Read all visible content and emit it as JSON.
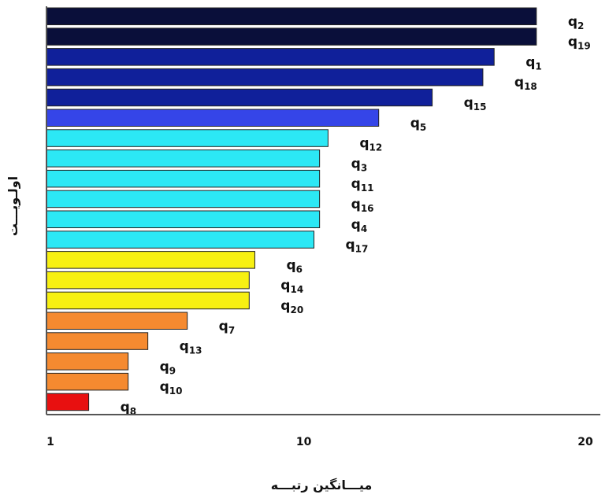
{
  "chart_data": {
    "type": "bar",
    "orientation": "horizontal",
    "xlabel": "میـــانگین رتبـــه",
    "ylabel": "اولـویـــت",
    "xlim": [
      1,
      20
    ],
    "xticks": [
      "1",
      "10",
      "20"
    ],
    "grid": false,
    "legend": "none",
    "bars": [
      {
        "label": "q",
        "sub": "2",
        "value": 18.4,
        "color": "#0a0f3a"
      },
      {
        "label": "q",
        "sub": "19",
        "value": 18.4,
        "color": "#0a0f3a"
      },
      {
        "label": "q",
        "sub": "1",
        "value": 16.9,
        "color": "#10209a"
      },
      {
        "label": "q",
        "sub": "18",
        "value": 16.5,
        "color": "#10209a"
      },
      {
        "label": "q",
        "sub": "15",
        "value": 14.7,
        "color": "#10209a"
      },
      {
        "label": "q",
        "sub": "5",
        "value": 12.8,
        "color": "#3545e8"
      },
      {
        "label": "q",
        "sub": "12",
        "value": 11.0,
        "color": "#2ce8f5"
      },
      {
        "label": "q",
        "sub": "3",
        "value": 10.7,
        "color": "#2ce8f5"
      },
      {
        "label": "q",
        "sub": "11",
        "value": 10.7,
        "color": "#2ce8f5"
      },
      {
        "label": "q",
        "sub": "16",
        "value": 10.7,
        "color": "#2ce8f5"
      },
      {
        "label": "q",
        "sub": "4",
        "value": 10.7,
        "color": "#2ce8f5"
      },
      {
        "label": "q",
        "sub": "17",
        "value": 10.5,
        "color": "#2ce8f5"
      },
      {
        "label": "q",
        "sub": "6",
        "value": 8.4,
        "color": "#f7f012"
      },
      {
        "label": "q",
        "sub": "14",
        "value": 8.2,
        "color": "#f7f012"
      },
      {
        "label": "q",
        "sub": "20",
        "value": 8.2,
        "color": "#f7f012"
      },
      {
        "label": "q",
        "sub": "7",
        "value": 6.0,
        "color": "#f58a30"
      },
      {
        "label": "q",
        "sub": "13",
        "value": 4.6,
        "color": "#f58a30"
      },
      {
        "label": "q",
        "sub": "9",
        "value": 3.9,
        "color": "#f58a30"
      },
      {
        "label": "q",
        "sub": "10",
        "value": 3.9,
        "color": "#f58a30"
      },
      {
        "label": "q",
        "sub": "8",
        "value": 2.5,
        "color": "#e81010"
      }
    ]
  }
}
